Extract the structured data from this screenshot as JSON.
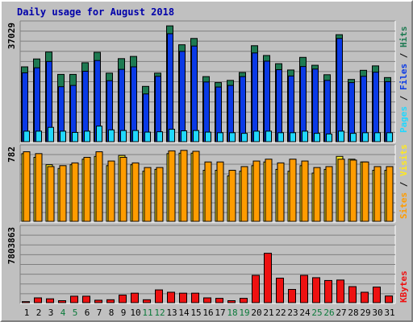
{
  "title": "Daily usage for August 2018",
  "colors": {
    "background": "#c0c0c0",
    "hits": "#1e7a52",
    "files": "#0a3ae6",
    "pages": "#20d8ff",
    "visits": "#ffe820",
    "sites": "#ff9c00",
    "kbytes": "#ee1111",
    "title": "#0000aa",
    "weekend_day": "#0a7a3a",
    "weekday": "#000000"
  },
  "chart_data": [
    {
      "type": "bar",
      "title": "Daily usage for August 2018",
      "panel": "pages-files-hits",
      "ylabel_parts": [
        "Pages",
        "Files",
        "Hits"
      ],
      "ymax_label": "37029",
      "ylim": [
        0,
        37029
      ],
      "categories": [
        "1",
        "2",
        "3",
        "4",
        "5",
        "6",
        "7",
        "8",
        "9",
        "10",
        "11",
        "12",
        "13",
        "14",
        "15",
        "16",
        "17",
        "18",
        "19",
        "20",
        "21",
        "22",
        "23",
        "24",
        "25",
        "26",
        "27",
        "28",
        "29",
        "30",
        "31"
      ],
      "series": [
        {
          "name": "Hits",
          "values": [
            24000,
            26500,
            28700,
            21600,
            21600,
            25300,
            28600,
            22000,
            26600,
            27300,
            17800,
            22000,
            37000,
            31000,
            33000,
            20900,
            19000,
            19700,
            22200,
            30700,
            27600,
            25000,
            23000,
            27000,
            24500,
            21500,
            34200,
            20000,
            22900,
            24300,
            20600
          ]
        },
        {
          "name": "Files",
          "values": [
            22100,
            23700,
            25700,
            17700,
            18100,
            22600,
            26000,
            19600,
            23200,
            24000,
            15400,
            21000,
            34500,
            28900,
            30600,
            19200,
            17600,
            18100,
            20900,
            28400,
            25800,
            23100,
            21100,
            24100,
            23300,
            19700,
            33000,
            19000,
            21000,
            22300,
            19300
          ]
        },
        {
          "name": "Pages",
          "values": [
            3600,
            3600,
            4800,
            3600,
            3200,
            3600,
            5200,
            4000,
            3800,
            3800,
            3300,
            3400,
            4200,
            3700,
            3800,
            3300,
            3100,
            3100,
            2900,
            3600,
            3600,
            3100,
            3100,
            3600,
            2900,
            2700,
            3600,
            2900,
            3100,
            3100,
            3100
          ]
        }
      ],
      "grid": true
    },
    {
      "type": "bar",
      "panel": "sites-visits",
      "ylabel_parts": [
        "Sites",
        "Visits"
      ],
      "ymax_label": "782",
      "ylim": [
        0,
        782
      ],
      "categories": [
        "1",
        "2",
        "3",
        "4",
        "5",
        "6",
        "7",
        "8",
        "9",
        "10",
        "11",
        "12",
        "13",
        "14",
        "15",
        "16",
        "17",
        "18",
        "19",
        "20",
        "21",
        "22",
        "23",
        "24",
        "25",
        "26",
        "27",
        "28",
        "29",
        "30",
        "31"
      ],
      "series": [
        {
          "name": "Visits",
          "values": [
            740,
            700,
            620,
            580,
            620,
            680,
            710,
            610,
            720,
            620,
            550,
            570,
            740,
            745,
            745,
            560,
            560,
            500,
            550,
            610,
            650,
            570,
            550,
            610,
            530,
            570,
            710,
            680,
            650,
            560,
            560
          ]
        },
        {
          "name": "Sites",
          "values": [
            760,
            740,
            600,
            610,
            640,
            700,
            760,
            660,
            700,
            640,
            590,
            590,
            770,
            775,
            765,
            650,
            650,
            560,
            600,
            660,
            680,
            640,
            680,
            660,
            590,
            600,
            680,
            670,
            650,
            600,
            600
          ]
        }
      ],
      "grid": true
    },
    {
      "type": "bar",
      "panel": "kbytes",
      "ylabel_parts": [
        "KBytes"
      ],
      "ymax_label": "7803863",
      "ylim": [
        0,
        7803863
      ],
      "categories": [
        "1",
        "2",
        "3",
        "4",
        "5",
        "6",
        "7",
        "8",
        "9",
        "10",
        "11",
        "12",
        "13",
        "14",
        "15",
        "16",
        "17",
        "18",
        "19",
        "20",
        "21",
        "22",
        "23",
        "24",
        "25",
        "26",
        "27",
        "28",
        "29",
        "30",
        "31"
      ],
      "series": [
        {
          "name": "KBytes",
          "values": [
            200000,
            600000,
            500000,
            300000,
            780000,
            780000,
            350000,
            400000,
            900000,
            1100000,
            400000,
            1450000,
            1200000,
            1100000,
            1100000,
            600000,
            550000,
            300000,
            550000,
            3000000,
            5350000,
            2700000,
            1500000,
            3000000,
            2750000,
            2450000,
            2500000,
            1800000,
            1200000,
            1750000,
            800000
          ]
        }
      ],
      "grid": true
    }
  ]
}
